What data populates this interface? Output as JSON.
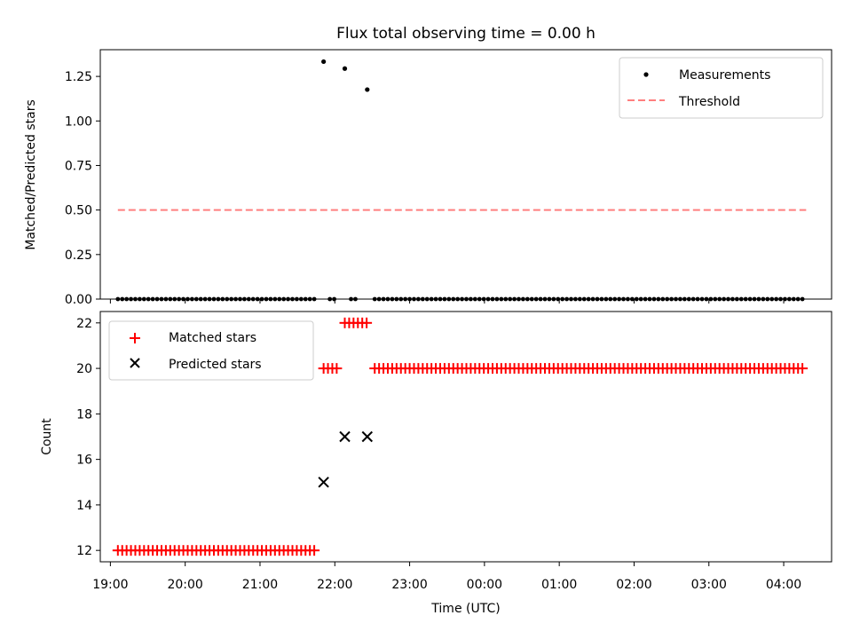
{
  "chart_data": [
    {
      "type": "scatter",
      "title": "Flux total observing time = 0.00 h",
      "xlabel": "",
      "ylabel": "Matched/Predicted stars",
      "ylim": [
        0,
        1.4
      ],
      "yticks": [
        "0.00",
        "0.25",
        "0.50",
        "0.75",
        "1.00",
        "1.25"
      ],
      "ytick_values": [
        0,
        0.25,
        0.5,
        0.75,
        1.0,
        1.25
      ],
      "legend_position": "top-right",
      "series": [
        {
          "name": "Measurements",
          "style": "dots",
          "color": "#000000",
          "ratio_points": [
            {
              "x": "21:51",
              "y": 1.333
            },
            {
              "x": "22:08",
              "y": 1.294
            },
            {
              "x": "22:26",
              "y": 1.176
            }
          ],
          "zero_segments": [
            {
              "start": "19:06",
              "end": "21:45",
              "step_min": 3.5
            },
            {
              "start": "21:56",
              "end": "22:02",
              "step_min": 3.5
            },
            {
              "start": "22:13",
              "end": "22:19",
              "step_min": 3.5
            },
            {
              "start": "22:32",
              "end": "04:18",
              "step_min": 3.5
            }
          ]
        },
        {
          "name": "Threshold",
          "style": "dashed-line",
          "color": "#ff7f7f",
          "x": [
            "19:06",
            "04:18"
          ],
          "y": [
            0.5,
            0.5
          ]
        }
      ]
    },
    {
      "type": "scatter",
      "title": "",
      "xlabel": "Time (UTC)",
      "ylabel": "Count",
      "ylim": [
        11.5,
        22.5
      ],
      "yticks": [
        "12",
        "14",
        "16",
        "18",
        "20",
        "22"
      ],
      "ytick_values": [
        12,
        14,
        16,
        18,
        20,
        22
      ],
      "xticks": [
        "19:00",
        "20:00",
        "21:00",
        "22:00",
        "23:00",
        "00:00",
        "01:00",
        "02:00",
        "03:00",
        "04:00"
      ],
      "legend_position": "top-left",
      "series": [
        {
          "name": "Matched stars",
          "marker": "+",
          "color": "#ff0000",
          "segments": [
            {
              "start": "19:06",
              "end": "21:45",
              "step_min": 3.5,
              "y": 12
            },
            {
              "start": "21:51",
              "end": "22:02",
              "step_min": 3.5,
              "y": 20
            },
            {
              "start": "22:08",
              "end": "22:26",
              "step_min": 3.5,
              "y": 22
            },
            {
              "start": "22:32",
              "end": "04:18",
              "step_min": 3.5,
              "y": 20
            }
          ]
        },
        {
          "name": "Predicted stars",
          "marker": "x",
          "color": "#000000",
          "points": [
            {
              "x": "21:51",
              "y": 15
            },
            {
              "x": "22:08",
              "y": 17
            },
            {
              "x": "22:26",
              "y": 17
            }
          ]
        }
      ]
    }
  ]
}
